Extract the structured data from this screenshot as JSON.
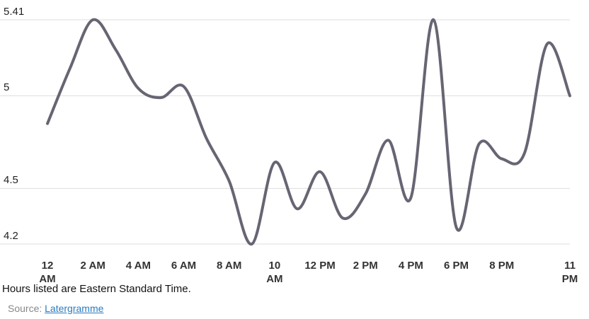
{
  "chart_data": {
    "type": "line",
    "categories": [
      "12\nAM",
      null,
      "2 AM",
      null,
      "4 AM",
      null,
      "6 AM",
      null,
      "8 AM",
      null,
      "10\nAM",
      null,
      "12 PM",
      null,
      "2 PM",
      null,
      "4 PM",
      null,
      "6 PM",
      null,
      "8 PM",
      null,
      null,
      "11\nPM"
    ],
    "series": [
      {
        "color": "#676573",
        "values": [
          4.85,
          5.15,
          5.41,
          5.25,
          5.04,
          4.99,
          5.05,
          4.77,
          4.54,
          4.2,
          4.64,
          4.39,
          4.59,
          4.34,
          4.47,
          4.76,
          4.45,
          5.41,
          4.29,
          4.74,
          4.66,
          4.69,
          5.28,
          5.0
        ]
      }
    ],
    "ylim": [
      4.2,
      5.41
    ],
    "yticks": [
      4.2,
      4.5,
      5,
      5.41
    ],
    "grid": true
  },
  "footer": {
    "note": "Hours listed are Eastern Standard Time.",
    "source_label": "Source:",
    "source_link": "Latergramme"
  }
}
